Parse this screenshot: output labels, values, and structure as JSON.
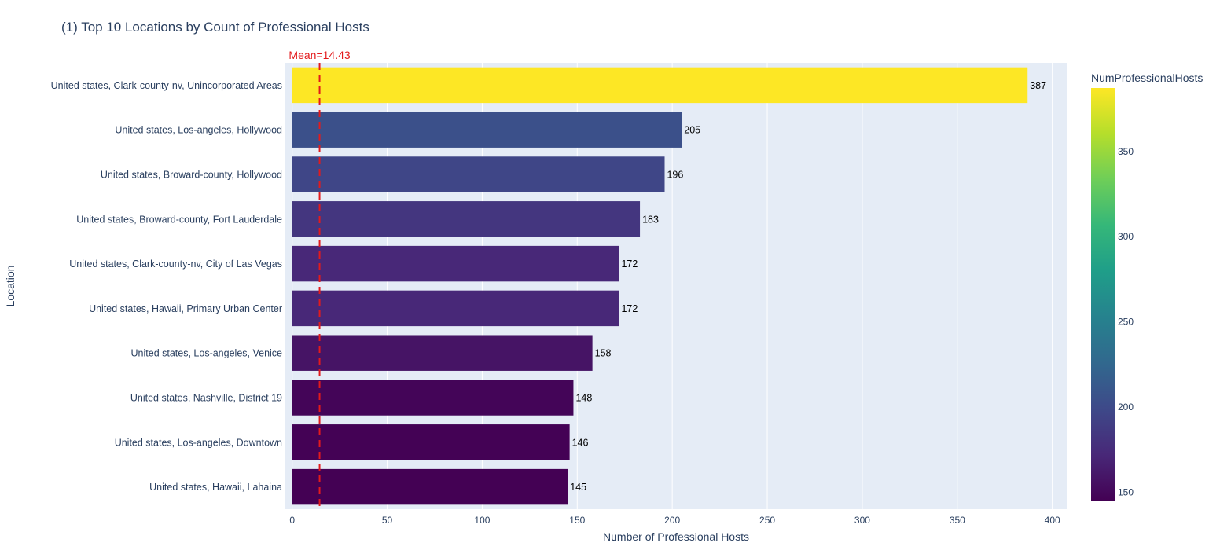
{
  "chart_data": {
    "type": "bar",
    "orientation": "horizontal",
    "title": "(1) Top 10 Locations by Count of Professional Hosts",
    "xlabel": "Number of Professional Hosts",
    "ylabel": "Location",
    "xlim": [
      -4,
      408
    ],
    "xticks": [
      0,
      50,
      100,
      150,
      200,
      250,
      300,
      350,
      400
    ],
    "grid": true,
    "categories": [
      "United states, Clark-county-nv, Unincorporated Areas",
      "United states, Los-angeles, Hollywood",
      "United states, Broward-county, Hollywood",
      "United states, Broward-county, Fort Lauderdale",
      "United states, Clark-county-nv, City of Las Vegas",
      "United states, Hawaii, Primary Urban Center",
      "United states, Los-angeles, Venice",
      "United states, Nashville, District 19",
      "United states, Los-angeles, Downtown",
      "United states, Hawaii, Lahaina"
    ],
    "values": [
      387,
      205,
      196,
      183,
      172,
      172,
      158,
      148,
      146,
      145
    ],
    "data_labels": [
      "387",
      "205",
      "196",
      "183",
      "172",
      "172",
      "158",
      "148",
      "146",
      "145"
    ],
    "mean_line": {
      "value": 14.43,
      "label": "Mean=14.43",
      "color": "#e31a1c",
      "style": "dashed"
    },
    "colorbar": {
      "title": "NumProfessionalHosts",
      "colorscale": "Viridis",
      "range": [
        145,
        387
      ],
      "ticks": [
        150,
        200,
        250,
        300,
        350
      ]
    },
    "colors": {
      "plot_background": "#e5ecf6",
      "gridline": "#ffffff",
      "text": "#2a3f5f",
      "bar_label": "#000000"
    }
  }
}
